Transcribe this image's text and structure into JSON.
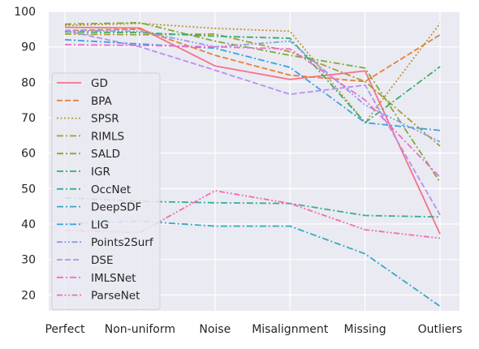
{
  "chart_data": {
    "type": "line",
    "categories": [
      "Perfect",
      "Non-uniform",
      "Noise",
      "Misalignment",
      "Missing",
      "Outliers"
    ],
    "ylim": [
      15.5,
      100
    ],
    "yticks": [
      20,
      30,
      40,
      50,
      60,
      70,
      80,
      90,
      100
    ],
    "grid": true,
    "legend_position": "left",
    "series": [
      {
        "name": "GD",
        "color": "#f77189",
        "dash": "solid",
        "values": [
          95.5,
          95.3,
          84.6,
          80.8,
          83.2,
          37.2
        ]
      },
      {
        "name": "BPA",
        "color": "#e5813b",
        "dash": "dashed",
        "values": [
          94.6,
          95.0,
          87.6,
          82.0,
          80.2,
          93.4
        ]
      },
      {
        "name": "SPSR",
        "color": "#c39432",
        "dash": "dotted",
        "values": [
          96.0,
          96.6,
          95.2,
          94.4,
          68.6,
          96.6
        ]
      },
      {
        "name": "RIMLS",
        "color": "#a59e33",
        "dash": "dashdot",
        "values": [
          93.6,
          93.4,
          93.6,
          88.6,
          80.2,
          62.0
        ]
      },
      {
        "name": "SALD",
        "color": "#7eab32",
        "dash": "dashdot",
        "values": [
          96.4,
          96.8,
          91.6,
          87.6,
          84.0,
          51.8
        ]
      },
      {
        "name": "IGR",
        "color": "#32b166",
        "dash": "dashdot",
        "values": [
          94.2,
          94.0,
          93.0,
          92.4,
          68.6,
          84.4
        ]
      },
      {
        "name": "OccNet",
        "color": "#35ad9c",
        "dash": "dashdot",
        "values": [
          47.4,
          46.4,
          46.0,
          45.8,
          42.4,
          42.0
        ]
      },
      {
        "name": "DeepSDF",
        "color": "#38a8c1",
        "dash": "dashdot",
        "values": [
          40.0,
          40.8,
          39.4,
          39.4,
          31.6,
          16.8
        ]
      },
      {
        "name": "LIG",
        "color": "#3ba3e0",
        "dash": "dashdot",
        "values": [
          92.0,
          90.8,
          89.6,
          84.2,
          68.6,
          66.4
        ]
      },
      {
        "name": "Points2Surf",
        "color": "#8a9bed",
        "dash": "dashdotdot",
        "values": [
          94.6,
          94.4,
          90.0,
          91.6,
          73.6,
          63.2
        ]
      },
      {
        "name": "DSE",
        "color": "#b88ff0",
        "dash": "dashed",
        "values": [
          94.6,
          90.0,
          83.4,
          76.6,
          79.2,
          42.6
        ]
      },
      {
        "name": "IMLSNet",
        "color": "#ee6cd0",
        "dash": "dashdot",
        "values": [
          90.6,
          90.4,
          90.0,
          89.4,
          75.0,
          53.2
        ]
      },
      {
        "name": "ParseNet",
        "color": "#f66ab0",
        "dash": "dashdotdot",
        "values": [
          38.2,
          37.6,
          49.4,
          45.8,
          38.4,
          36.0
        ]
      }
    ]
  }
}
